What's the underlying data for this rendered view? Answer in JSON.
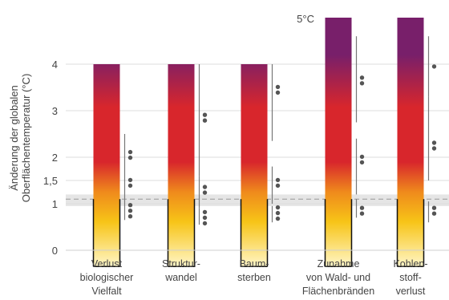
{
  "chart_data": {
    "type": "bar",
    "ylabel_lines": [
      "Änderung der globalen",
      "Oberflächentemperatur (°C)"
    ],
    "y_ticks": [
      {
        "value": 0,
        "label": "0"
      },
      {
        "value": 1,
        "label": "1"
      },
      {
        "value": 1.5,
        "label": "1,5"
      },
      {
        "value": 2,
        "label": "2"
      },
      {
        "value": 3,
        "label": "3"
      },
      {
        "value": 4,
        "label": "4"
      }
    ],
    "ylim": [
      0,
      5
    ],
    "top_annotation": "5°C",
    "band": {
      "low": 0.95,
      "high": 1.2
    },
    "dashed_line": 1.1,
    "bar_bottom": -0.35,
    "colors": {
      "low": "#fff6c8",
      "yellow": "#f7c417",
      "orange": "#ef8a1c",
      "red": "#d8262c",
      "purple": "#781f6a",
      "dot": "#555555",
      "whisker": "#777777",
      "band": "#dcdcdc",
      "axis": "#888888"
    },
    "categories": [
      {
        "label_lines": [
          "Verlust",
          "biologischer",
          "Vielfalt"
        ],
        "top": 4.0,
        "outline_top": 1.1,
        "ranges": [
          {
            "low": 0.65,
            "high": 1.1,
            "mid": 0.85,
            "dots": 3
          },
          {
            "low": 1.1,
            "high": 1.75,
            "mid": 1.45,
            "dots": 2
          },
          {
            "low": 1.75,
            "high": 2.5,
            "mid": 2.05,
            "dots": 2
          }
        ]
      },
      {
        "label_lines": [
          "Struktur-",
          "wandel"
        ],
        "top": 4.0,
        "outline_top": 1.1,
        "ranges": [
          {
            "low": 0.55,
            "high": 0.9,
            "mid": 0.7,
            "dots": 3
          },
          {
            "low": 0.9,
            "high": 1.6,
            "mid": 1.3,
            "dots": 2
          },
          {
            "low": 1.6,
            "high": 4.0,
            "mid": 2.85,
            "dots": 2
          }
        ]
      },
      {
        "label_lines": [
          "Baum-",
          "sterben"
        ],
        "top": 4.0,
        "outline_top": 1.1,
        "ranges": [
          {
            "low": 0.6,
            "high": 0.95,
            "mid": 0.8,
            "dots": 3
          },
          {
            "low": 1.0,
            "high": 1.8,
            "mid": 1.45,
            "dots": 2
          },
          {
            "low": 2.35,
            "high": 4.0,
            "mid": 3.45,
            "dots": 2
          }
        ]
      },
      {
        "label_lines": [
          "Zunahme",
          "von Wald- und",
          "Flächenbränden"
        ],
        "top": 5.0,
        "outline_top": 1.1,
        "ranges": [
          {
            "low": 0.7,
            "high": 1.1,
            "mid": 0.85,
            "dots": 2
          },
          {
            "low": 1.2,
            "high": 2.4,
            "mid": 1.95,
            "dots": 2
          },
          {
            "low": 2.75,
            "high": 4.6,
            "mid": 3.65,
            "dots": 2
          }
        ]
      },
      {
        "label_lines": [
          "Kohlen-",
          "stoff-",
          "verlust"
        ],
        "top": 5.0,
        "outline_top": 1.1,
        "ranges": [
          {
            "low": 0.6,
            "high": 1.05,
            "mid": 0.85,
            "dots": 2
          },
          {
            "low": 1.5,
            "high": 3.3,
            "mid": 2.25,
            "dots": 2
          },
          {
            "low": 3.3,
            "high": 4.6,
            "mid": 3.95,
            "dots": 1
          }
        ]
      }
    ]
  }
}
